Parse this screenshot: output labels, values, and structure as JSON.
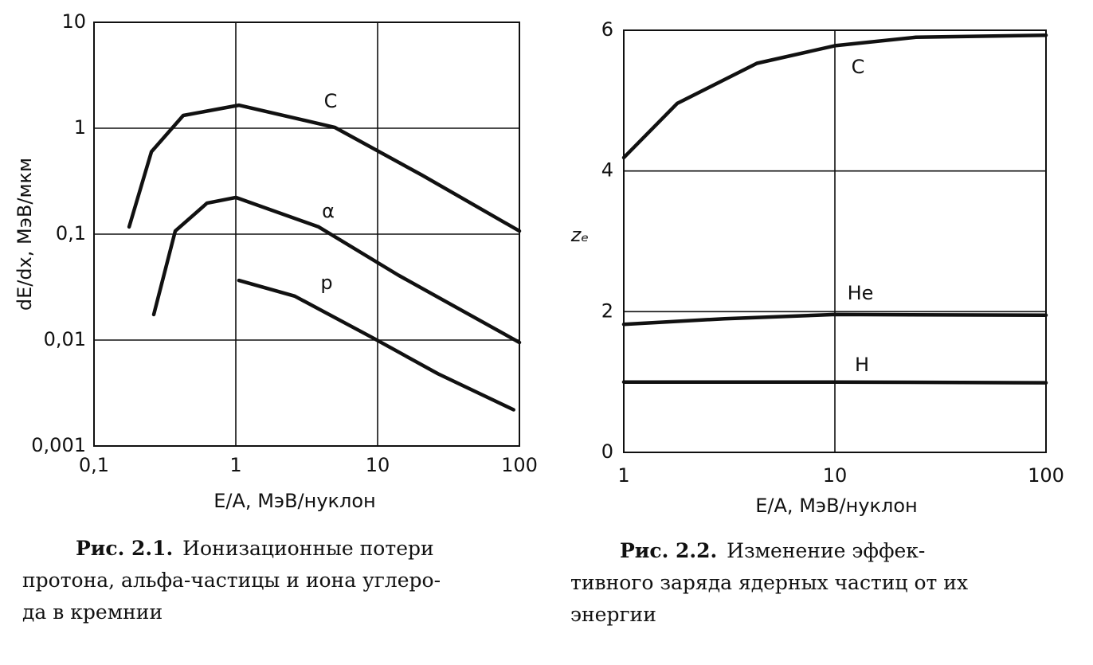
{
  "chart_data": [
    {
      "type": "line",
      "xscale": "log",
      "yscale": "log",
      "x_label": "E/A, МэВ/нуклон",
      "y_label": "dE/dx, МэВ/мкм",
      "xlim": [
        0.1,
        100
      ],
      "ylim": [
        0.001,
        10
      ],
      "xticks": [
        {
          "value": 0.1,
          "label": "0,1"
        },
        1,
        10,
        100
      ],
      "yticks": [
        {
          "value": 0.001,
          "label": "0,001"
        },
        {
          "value": 0.01,
          "label": "0,01"
        },
        {
          "value": 0.1,
          "label": "0,1"
        },
        1,
        10
      ],
      "grid": true,
      "series": [
        {
          "name": "C",
          "color": "#111111",
          "x": [
            0.177,
            0.254,
            0.426,
            1.05,
            4.98,
            20.6,
            100
          ],
          "values": [
            0.117,
            0.6,
            1.32,
            1.65,
            1.02,
            0.36,
            0.107
          ]
        },
        {
          "name": "α",
          "color": "#111111",
          "x": [
            0.264,
            0.374,
            0.626,
            1.0,
            3.84,
            14,
            100
          ],
          "values": [
            0.0174,
            0.107,
            0.196,
            0.222,
            0.117,
            0.041,
            0.0095
          ]
        },
        {
          "name": "p",
          "color": "#111111",
          "x": [
            1.05,
            2.6,
            9.5,
            26.7,
            91
          ],
          "values": [
            0.0366,
            0.026,
            0.0103,
            0.0048,
            0.0022
          ]
        }
      ],
      "caption_label": "Рис. 2.1.",
      "caption_lines": [
        "Ионизационные потери",
        "протона, альфа-частицы и иона углеро-",
        "да в кремнии"
      ]
    },
    {
      "type": "line",
      "xscale": "log",
      "x_label": "E/A, МэВ/нуклон",
      "y_label": "zₑ",
      "xlim": [
        1,
        100
      ],
      "ylim": [
        0,
        6
      ],
      "xticks": [
        1,
        10,
        100
      ],
      "yticks": [
        0,
        2,
        4,
        6
      ],
      "grid": true,
      "series": [
        {
          "name": "C",
          "color": "#111111",
          "x": [
            1,
            1.79,
            4.27,
            10,
            24.2,
            100
          ],
          "values": [
            4.19,
            4.96,
            5.53,
            5.78,
            5.9,
            5.93
          ]
        },
        {
          "name": "He",
          "color": "#111111",
          "x": [
            1,
            3,
            10,
            100
          ],
          "values": [
            1.82,
            1.9,
            1.96,
            1.95
          ]
        },
        {
          "name": "H",
          "color": "#111111",
          "x": [
            1,
            10,
            100
          ],
          "values": [
            1.0,
            1.0,
            0.99
          ]
        }
      ],
      "caption_label": "Рис. 2.2.",
      "caption_lines": [
        "Изменение эффек-",
        "тивного заряда ядерных частиц от их",
        "энергии"
      ]
    }
  ]
}
